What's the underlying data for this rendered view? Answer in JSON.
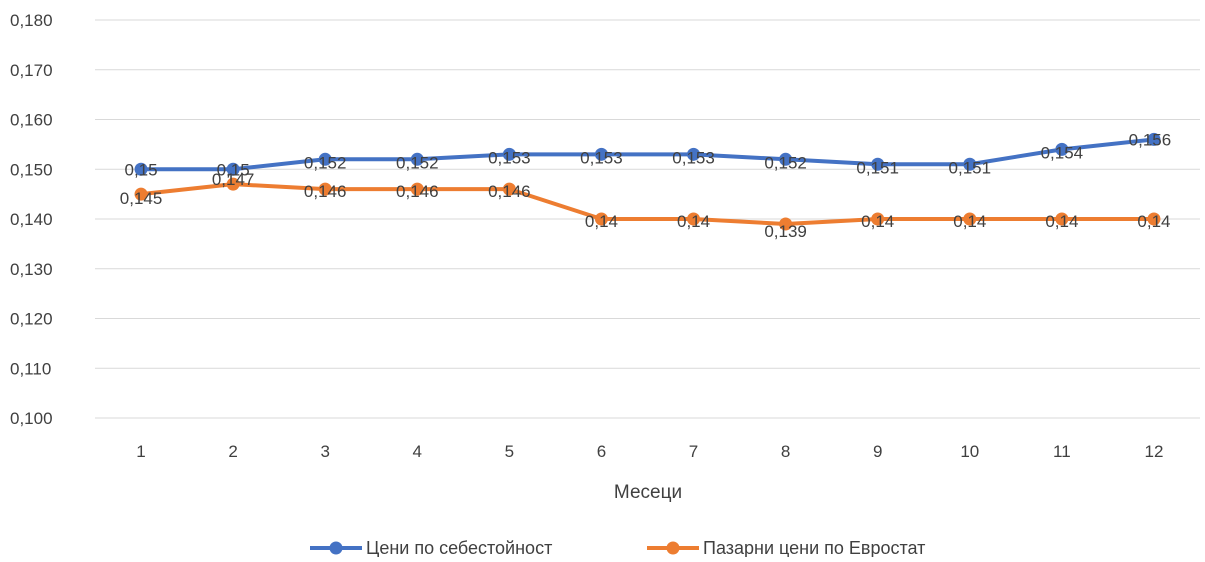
{
  "chart_data": {
    "type": "line",
    "title": "",
    "xlabel": "Месеци",
    "ylabel": "",
    "categories": [
      "1",
      "2",
      "3",
      "4",
      "5",
      "6",
      "7",
      "8",
      "9",
      "10",
      "11",
      "12"
    ],
    "ylim": [
      0.1,
      0.18
    ],
    "y_ticks": [
      "0,100",
      "0,110",
      "0,120",
      "0,130",
      "0,140",
      "0,150",
      "0,160",
      "0,170",
      "0,180"
    ],
    "grid": true,
    "legend_position": "bottom",
    "series": [
      {
        "name": "Цени  по себестойност",
        "color": "#4472c4",
        "values": [
          0.15,
          0.15,
          0.152,
          0.152,
          0.153,
          0.153,
          0.153,
          0.152,
          0.151,
          0.151,
          0.154,
          0.156
        ],
        "labels": [
          "0,15",
          "0,15",
          "0,152",
          "0,152",
          "0,153",
          "0,153",
          "0,153",
          "0,152",
          "0,151",
          "0,151",
          "0,154",
          "0,156"
        ]
      },
      {
        "name": "Пазарни цени по Евростат",
        "color": "#ed7d31",
        "values": [
          0.145,
          0.147,
          0.146,
          0.146,
          0.146,
          0.14,
          0.14,
          0.139,
          0.14,
          0.14,
          0.14,
          0.14
        ],
        "labels": [
          "0,145",
          "0,147",
          "0,146",
          "0,146",
          "0,146",
          "0,14",
          "0,14",
          "0,139",
          "0,14",
          "0,14",
          "0,14",
          "0,14"
        ]
      }
    ]
  }
}
